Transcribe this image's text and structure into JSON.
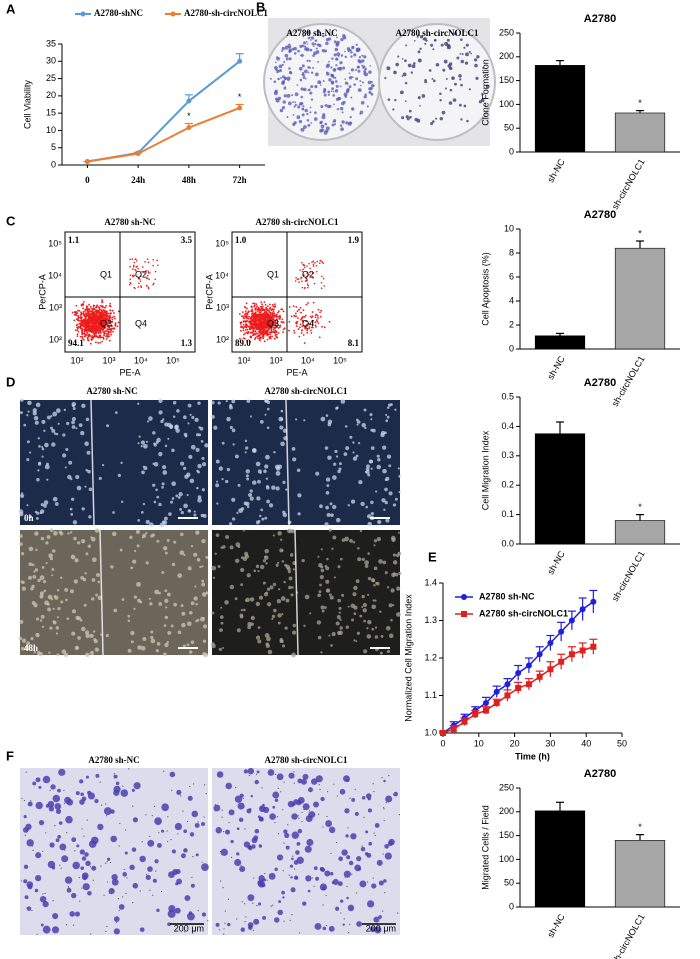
{
  "chart_data": [
    {
      "type": "line",
      "categories": [
        "0",
        "24h",
        "48h",
        "72h"
      ],
      "ylabel": "Cell Viability",
      "ylim": [
        0,
        35
      ],
      "yticks": [
        0,
        5,
        10,
        15,
        20,
        25,
        30,
        35
      ],
      "series": [
        {
          "name": "A2780-shNC",
          "color": "#5b9bd5",
          "values": [
            1,
            3.5,
            18.5,
            30
          ],
          "errors": [
            0,
            0.2,
            1.8,
            2.2
          ]
        },
        {
          "name": "A2780-sh-circNOLC1",
          "color": "#ed7d31",
          "values": [
            1,
            3.3,
            10.8,
            16.5
          ],
          "errors": [
            0,
            0.2,
            1.2,
            1
          ]
        }
      ],
      "annotations": [
        {
          "text": "*",
          "series": 1,
          "index": 2
        },
        {
          "text": "*",
          "series": 1,
          "index": 3
        }
      ]
    },
    {
      "type": "bar",
      "title": "A2780",
      "ylabel": "Clone Formation",
      "categories": [
        "sh-NC",
        "sh-circNOLC1"
      ],
      "values": [
        182,
        82
      ],
      "errors": [
        10,
        5
      ],
      "colors": [
        "#000000",
        "#a6a6a6"
      ],
      "ylim": [
        0,
        250
      ],
      "yticks": [
        0,
        50,
        100,
        150,
        200,
        250
      ],
      "annotations": [
        {
          "text": "*",
          "index": 1
        }
      ]
    },
    {
      "type": "bar",
      "title": "A2780",
      "ylabel": "Cell Apoptosis (%)",
      "categories": [
        "sh-NC",
        "sh-circNOLC1"
      ],
      "values": [
        1.1,
        8.4
      ],
      "errors": [
        0.2,
        0.6
      ],
      "colors": [
        "#000000",
        "#a6a6a6"
      ],
      "ylim": [
        0,
        10
      ],
      "yticks": [
        0,
        2,
        4,
        6,
        8,
        10
      ],
      "annotations": [
        {
          "text": "*",
          "index": 1
        }
      ]
    },
    {
      "type": "bar",
      "title": "A2780",
      "ylabel": "Cell Migration Index",
      "categories": [
        "sh-NC",
        "sh-circNOLC1"
      ],
      "values": [
        0.375,
        0.08
      ],
      "errors": [
        0.04,
        0.02
      ],
      "colors": [
        "#000000",
        "#a6a6a6"
      ],
      "ylim": [
        0,
        0.5
      ],
      "yticks": [
        {
          "value": 0,
          "label": "0.0"
        },
        0.1,
        0.2,
        0.3,
        0.4,
        0.5
      ],
      "annotations": [
        {
          "text": "*",
          "index": 1
        }
      ]
    },
    {
      "type": "scatter-line",
      "xlabel": "Time (h)",
      "ylabel": "Normalized Cell Migration Index",
      "x": [
        0,
        3,
        6,
        9,
        12,
        15,
        18,
        21,
        24,
        27,
        30,
        33,
        36,
        39,
        42
      ],
      "xlim": [
        0,
        50
      ],
      "xticks": [
        0,
        10,
        20,
        30,
        40,
        50
      ],
      "ylim": [
        1.0,
        1.4
      ],
      "yticks": [
        {
          "value": 1.0,
          "label": "1.0"
        },
        1.1,
        1.2,
        1.3,
        1.4
      ],
      "series": [
        {
          "name": "A2780 sh-NC",
          "color": "#1f1fe0",
          "marker": "circle",
          "values": [
            1.0,
            1.02,
            1.04,
            1.06,
            1.08,
            1.11,
            1.13,
            1.16,
            1.18,
            1.21,
            1.24,
            1.27,
            1.3,
            1.33,
            1.35
          ],
          "errors": [
            0.005,
            0.01,
            0.01,
            0.01,
            0.015,
            0.015,
            0.015,
            0.02,
            0.02,
            0.02,
            0.02,
            0.025,
            0.025,
            0.03,
            0.03
          ]
        },
        {
          "name": "A2780 sh-circNOLC1",
          "color": "#e01f1f",
          "marker": "square",
          "values": [
            1.0,
            1.01,
            1.03,
            1.05,
            1.06,
            1.08,
            1.1,
            1.12,
            1.13,
            1.15,
            1.17,
            1.19,
            1.21,
            1.22,
            1.23
          ],
          "errors": [
            0.005,
            0.01,
            0.01,
            0.01,
            0.01,
            0.01,
            0.015,
            0.015,
            0.015,
            0.015,
            0.02,
            0.02,
            0.02,
            0.02,
            0.02
          ]
        }
      ],
      "legend": "upper left"
    },
    {
      "type": "bar",
      "title": "A2780",
      "ylabel": "Migrated Cells / Field",
      "categories": [
        "sh-NC",
        "sh-circNOLC1"
      ],
      "values": [
        202,
        140
      ],
      "errors": [
        18,
        12
      ],
      "colors": [
        "#000000",
        "#a6a6a6"
      ],
      "ylim": [
        0,
        250
      ],
      "yticks": [
        0,
        50,
        100,
        150,
        200,
        250
      ],
      "annotations": [
        {
          "text": "*",
          "index": 1
        }
      ]
    }
  ],
  "figure": {
    "panel_labels": [
      "A",
      "B",
      "C",
      "D",
      "E",
      "F"
    ],
    "b_captions": [
      "A2780 sh-NC",
      "A2780 sh-circNOLC1"
    ],
    "c_flow": [
      {
        "title": "A2780 sh-NC",
        "quadrants": [
          "1.1",
          "3.5",
          "94.1",
          "1.3"
        ]
      },
      {
        "title": "A2780 sh-circNOLC1",
        "quadrants": [
          "1.0",
          "1.9",
          "89.0",
          "8.1"
        ]
      }
    ],
    "quadrant_names": [
      "Q1",
      "Q2",
      "Q3",
      "Q4"
    ],
    "flow_xlabel": "PE-A",
    "flow_ylabel": "PerCP-A",
    "flow_ticks": [
      "10²",
      "10³",
      "10⁴",
      "10⁵"
    ],
    "d_captions": [
      "A2780 sh-NC",
      "A2780 sh-circNOLC1"
    ],
    "d_times": [
      "0h",
      "48h"
    ],
    "f_captions": [
      "A2780 sh-NC",
      "A2780 sh-circNOLC1"
    ],
    "f_scale": "200 μm"
  }
}
